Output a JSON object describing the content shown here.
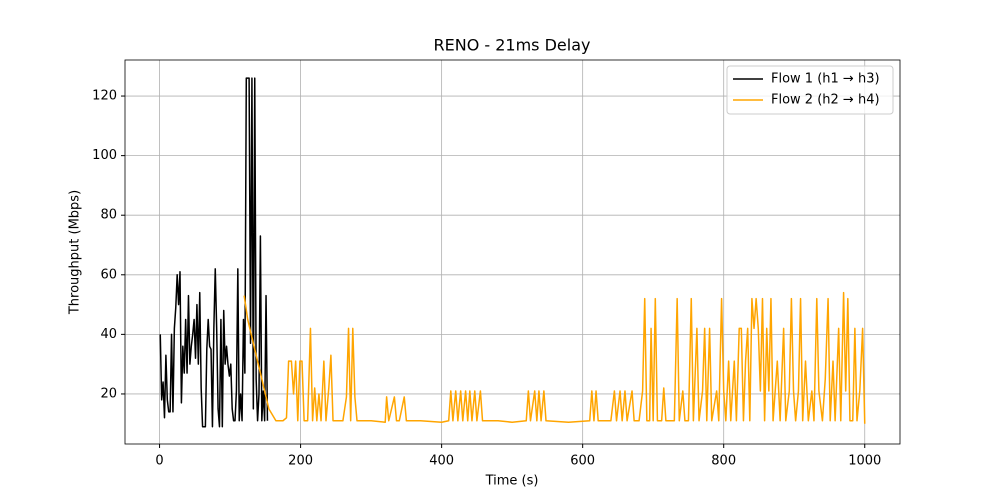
{
  "chart_data": {
    "type": "line",
    "title": "RENO - 21ms Delay",
    "x_label": "Time (s)",
    "y_label": "Throughput (Mbps)",
    "xlim": [
      -49,
      1050
    ],
    "ylim": [
      3.2,
      132.1
    ],
    "xticks": [
      0,
      200,
      400,
      600,
      800,
      1000
    ],
    "yticks": [
      20,
      40,
      60,
      80,
      100,
      120
    ],
    "grid": true,
    "legend": "upper right",
    "series": [
      {
        "name": "Flow 1 (h1 → h3)",
        "color": "#000000",
        "x": [
          1,
          3,
          5,
          7,
          9,
          11,
          13,
          15,
          17,
          19,
          21,
          23,
          25,
          27,
          29,
          31,
          33,
          35,
          37,
          39,
          41,
          43,
          45,
          47,
          49,
          51,
          53,
          55,
          57,
          59,
          61,
          63,
          65,
          67,
          69,
          71,
          73,
          75,
          77,
          79,
          81,
          83,
          85,
          87,
          89,
          91,
          93,
          95,
          97,
          99,
          101,
          103,
          105,
          107,
          109,
          111,
          113,
          115,
          117,
          119,
          121,
          123,
          125,
          127,
          129,
          131,
          133,
          135,
          137,
          139,
          141,
          143,
          145,
          147,
          149,
          151,
          153
        ],
        "values": [
          40,
          18,
          24,
          12,
          33,
          18,
          14,
          14,
          40,
          14,
          42,
          49,
          60,
          50,
          61,
          17,
          36,
          27,
          45,
          27,
          53,
          30,
          36,
          40,
          45,
          32,
          50,
          30,
          54,
          22,
          9,
          9,
          9,
          35,
          45,
          36,
          35,
          9,
          42,
          62,
          42,
          15,
          9,
          45,
          9,
          48,
          30,
          36,
          30,
          26,
          30,
          15,
          11,
          11,
          21,
          62,
          11,
          20,
          11,
          45,
          27,
          126,
          126,
          126,
          37,
          126,
          15,
          126,
          25,
          11,
          20,
          73,
          11,
          21,
          11,
          53,
          11
        ]
      },
      {
        "name": "Flow 2 (h2 → h4)",
        "color": "#ffa500",
        "x": [
          120,
          125,
          135,
          145,
          155,
          165,
          175,
          180,
          183,
          187,
          190,
          193,
          196,
          199,
          202,
          205,
          210,
          214,
          217,
          220,
          223,
          226,
          229,
          233,
          236,
          240,
          243,
          246,
          255,
          260,
          265,
          268,
          271,
          274,
          277,
          280,
          300,
          320,
          322,
          325,
          333,
          336,
          340,
          347,
          350,
          370,
          400,
          410,
          413,
          416,
          420,
          423,
          427,
          430,
          434,
          437,
          440,
          443,
          447,
          450,
          455,
          458,
          480,
          500,
          520,
          523,
          526,
          532,
          535,
          538,
          541,
          545,
          548,
          580,
          610,
          613,
          616,
          619,
          622,
          640,
          645,
          648,
          653,
          656,
          660,
          663,
          670,
          673,
          680,
          685,
          688,
          691,
          695,
          697,
          700,
          703,
          706,
          712,
          715,
          718,
          730,
          734,
          737,
          742,
          745,
          750,
          754,
          757,
          762,
          765,
          770,
          773,
          776,
          780,
          783,
          790,
          793,
          797,
          800,
          803,
          807,
          810,
          815,
          818,
          822,
          825,
          828,
          831,
          834,
          837,
          840,
          843,
          846,
          849,
          852,
          855,
          858,
          861,
          864,
          867,
          870,
          876,
          880,
          885,
          888,
          893,
          896,
          899,
          902,
          906,
          909,
          912,
          916,
          920,
          925,
          928,
          932,
          935,
          940,
          944,
          948,
          951,
          955,
          958,
          963,
          966,
          970,
          973,
          976,
          979,
          983,
          986,
          989,
          993,
          997,
          1000
        ],
        "values": [
          53,
          45,
          35,
          25,
          15,
          11,
          11,
          12,
          31,
          31,
          20,
          31,
          11,
          31,
          31,
          11,
          11,
          42,
          11,
          22,
          11,
          20,
          11,
          31,
          11,
          22,
          33,
          11,
          11,
          11,
          19,
          42,
          11,
          42,
          19,
          11,
          11,
          10.5,
          19,
          11,
          19,
          11,
          11,
          19,
          11,
          11,
          10.5,
          11,
          21,
          11,
          21,
          11,
          21,
          11,
          21,
          11,
          21,
          11,
          21,
          11,
          21,
          11,
          11,
          10.5,
          11,
          21,
          11,
          21,
          11,
          21,
          11,
          21,
          11,
          10.5,
          11,
          21,
          11,
          21,
          11,
          11,
          21,
          11,
          21,
          11,
          21,
          11,
          21,
          11,
          11,
          21,
          52,
          11,
          11,
          42,
          11,
          52,
          11,
          11,
          22,
          11,
          11,
          52,
          11,
          21,
          11,
          11,
          52,
          11,
          42,
          11,
          21,
          42,
          11,
          42,
          11,
          21,
          11,
          52,
          21,
          11,
          31,
          11,
          31,
          11,
          42,
          42,
          11,
          31,
          42,
          11,
          52,
          42,
          52,
          42,
          21,
          52,
          11,
          42,
          21,
          52,
          11,
          31,
          11,
          42,
          11,
          21,
          52,
          21,
          11,
          21,
          52,
          11,
          31,
          11,
          21,
          11,
          52,
          21,
          11,
          25,
          52,
          11,
          31,
          11,
          42,
          11,
          54,
          21,
          52,
          11,
          11,
          42,
          11,
          21,
          42,
          10
        ]
      }
    ]
  }
}
